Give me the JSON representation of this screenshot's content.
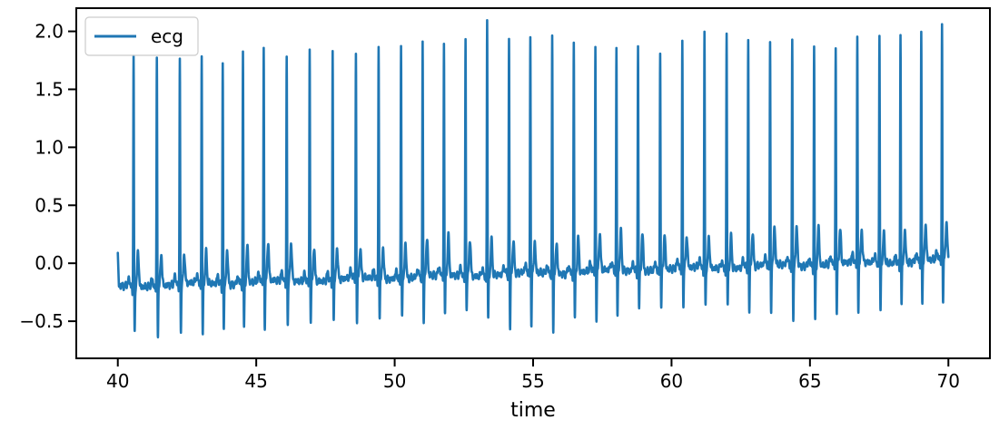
{
  "chart_data": {
    "type": "line",
    "title": "",
    "xlabel": "time",
    "ylabel": "",
    "xlim": [
      38.5,
      71.5
    ],
    "ylim": [
      -0.82,
      2.2
    ],
    "x_ticks": [
      40,
      45,
      50,
      55,
      60,
      65,
      70
    ],
    "y_ticks": [
      -0.5,
      0.0,
      0.5,
      1.0,
      1.5,
      2.0
    ],
    "x_tick_labels": [
      "40",
      "45",
      "50",
      "55",
      "60",
      "65",
      "70"
    ],
    "y_tick_labels": [
      "−0.5",
      "0.0",
      "0.5",
      "1.0",
      "1.5",
      "2.0"
    ],
    "grid": false,
    "legend": {
      "position": "top-left"
    },
    "series": [
      {
        "name": "ecg",
        "color": "#1f77b4",
        "x_start": 40.0,
        "x_end": 70.0,
        "r_peaks": [
          {
            "t": 40.57,
            "peak": 1.77,
            "trough": -0.65
          },
          {
            "t": 41.41,
            "peak": 1.75,
            "trough": -0.67
          },
          {
            "t": 42.24,
            "peak": 1.76,
            "trough": -0.66
          },
          {
            "t": 43.03,
            "peak": 1.77,
            "trough": -0.68
          },
          {
            "t": 43.79,
            "peak": 1.73,
            "trough": -0.65
          },
          {
            "t": 44.52,
            "peak": 1.82,
            "trough": -0.61
          },
          {
            "t": 45.27,
            "peak": 1.85,
            "trough": -0.6
          },
          {
            "t": 46.1,
            "peak": 1.77,
            "trough": -0.59
          },
          {
            "t": 46.93,
            "peak": 1.85,
            "trough": -0.55
          },
          {
            "t": 47.76,
            "peak": 1.82,
            "trough": -0.55
          },
          {
            "t": 48.6,
            "peak": 1.81,
            "trough": -0.56
          },
          {
            "t": 49.42,
            "peak": 1.86,
            "trough": -0.54
          },
          {
            "t": 50.23,
            "peak": 1.88,
            "trough": -0.52
          },
          {
            "t": 51.01,
            "peak": 1.9,
            "trough": -0.55
          },
          {
            "t": 51.78,
            "peak": 1.9,
            "trough": -0.5
          },
          {
            "t": 52.56,
            "peak": 1.94,
            "trough": -0.45
          },
          {
            "t": 53.34,
            "peak": 2.08,
            "trough": -0.53
          },
          {
            "t": 54.13,
            "peak": 1.93,
            "trough": -0.62
          },
          {
            "t": 54.9,
            "peak": 1.95,
            "trough": -0.6
          },
          {
            "t": 55.69,
            "peak": 1.94,
            "trough": -0.63
          },
          {
            "t": 56.47,
            "peak": 1.92,
            "trough": -0.56
          },
          {
            "t": 57.25,
            "peak": 1.86,
            "trough": -0.54
          },
          {
            "t": 58.01,
            "peak": 1.83,
            "trough": -0.5
          },
          {
            "t": 58.79,
            "peak": 1.9,
            "trough": -0.47
          },
          {
            "t": 59.59,
            "peak": 1.84,
            "trough": -0.45
          },
          {
            "t": 60.39,
            "peak": 1.91,
            "trough": -0.43
          },
          {
            "t": 61.19,
            "peak": 1.98,
            "trough": -0.43
          },
          {
            "t": 61.99,
            "peak": 1.97,
            "trough": -0.43
          },
          {
            "t": 62.77,
            "peak": 1.94,
            "trough": -0.48
          },
          {
            "t": 63.56,
            "peak": 1.93,
            "trough": -0.5
          },
          {
            "t": 64.36,
            "peak": 1.91,
            "trough": -0.55
          },
          {
            "t": 65.15,
            "peak": 1.85,
            "trough": -0.55
          },
          {
            "t": 65.93,
            "peak": 1.88,
            "trough": -0.5
          },
          {
            "t": 66.71,
            "peak": 1.94,
            "trough": -0.48
          },
          {
            "t": 67.51,
            "peak": 1.95,
            "trough": -0.45
          },
          {
            "t": 68.27,
            "peak": 1.97,
            "trough": -0.43
          },
          {
            "t": 69.02,
            "peak": 1.96,
            "trough": -0.4
          },
          {
            "t": 69.77,
            "peak": 2.05,
            "trough": -0.38
          }
        ]
      }
    ]
  }
}
